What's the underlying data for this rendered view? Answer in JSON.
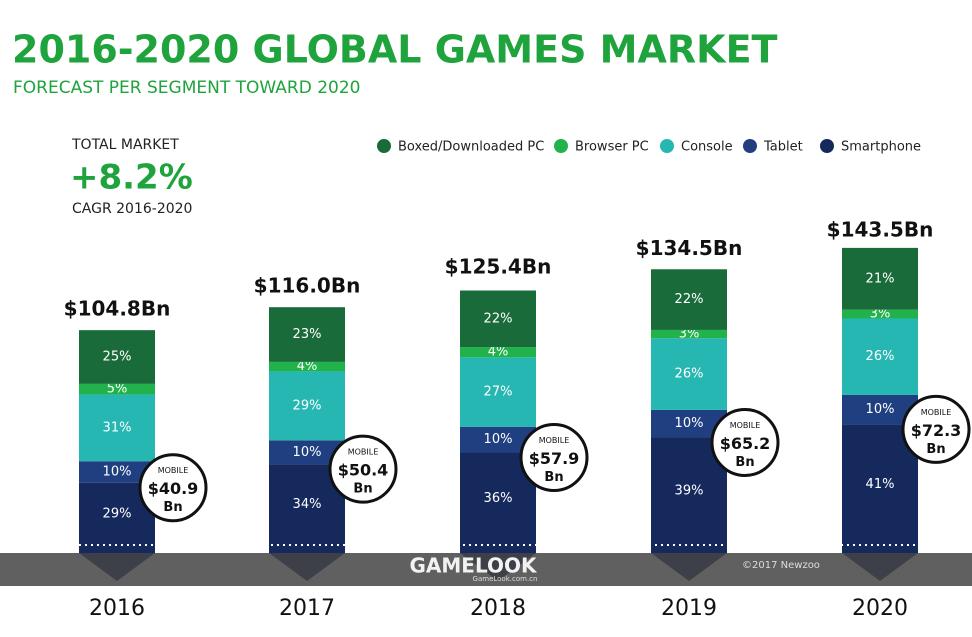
{
  "chart_data": {
    "type": "stacked_bar",
    "title": "2016-2020 GLOBAL GAMES MARKET",
    "subtitle": "FORECAST PER SEGMENT TOWARD 2020",
    "kpi": {
      "label": "TOTAL MARKET",
      "value": "+8.2%",
      "note": "CAGR 2016-2020"
    },
    "categories": [
      "2016",
      "2017",
      "2018",
      "2019",
      "2020"
    ],
    "series": [
      {
        "name": "Boxed/Downloaded PC",
        "color": "#1a6b3a",
        "values": [
          25,
          23,
          22,
          22,
          21
        ],
        "value_labels": [
          "25%",
          "23%",
          "22%",
          "22%",
          "21%"
        ]
      },
      {
        "name": "Browser PC",
        "color": "#22b24c",
        "values": [
          5,
          4,
          4,
          3,
          3
        ],
        "value_labels": [
          "5%",
          "4%",
          "4%",
          "3%",
          "3%"
        ]
      },
      {
        "name": "Console",
        "color": "#26b7b3",
        "values": [
          31,
          29,
          27,
          26,
          26
        ],
        "value_labels": [
          "31%",
          "29%",
          "27%",
          "26%",
          "26%"
        ]
      },
      {
        "name": "Tablet",
        "color": "#1f3f80",
        "values": [
          10,
          10,
          10,
          10,
          10
        ],
        "value_labels": [
          "10%",
          "10%",
          "10%",
          "10%",
          "10%"
        ]
      },
      {
        "name": "Smartphone",
        "color": "#15295c",
        "values": [
          29,
          34,
          36,
          39,
          41
        ],
        "value_labels": [
          "29%",
          "34%",
          "36%",
          "39%",
          "41%"
        ]
      }
    ],
    "totals": {
      "values": [
        104.8,
        116.0,
        125.4,
        134.5,
        143.5
      ],
      "value_labels": [
        "$104.8Bn",
        "$116.0Bn",
        "$125.4Bn",
        "$134.5Bn",
        "$143.5Bn"
      ]
    },
    "mobile": {
      "label": "MOBILE",
      "unit": "Bn",
      "values": [
        40.9,
        50.4,
        57.9,
        65.2,
        72.3
      ],
      "value_labels": [
        "$40.9",
        "$50.4",
        "$57.9",
        "$65.2",
        "$72.3"
      ]
    },
    "watermark": {
      "brand": "GAMELOOK",
      "site": "GameLook.com.cn"
    },
    "source": "©2017 Newzoo"
  }
}
